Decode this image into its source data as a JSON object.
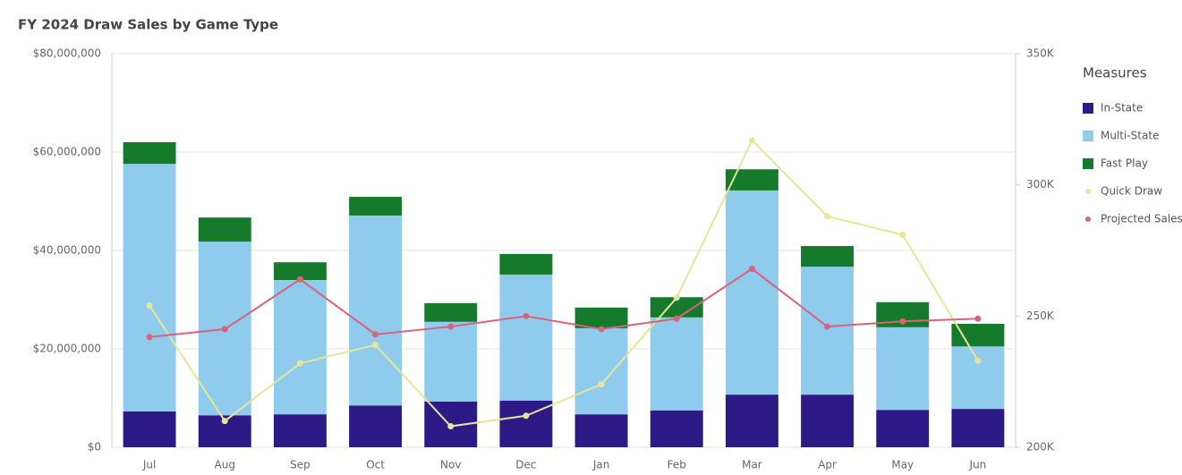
{
  "chart_data": {
    "type": "bar",
    "stacked": true,
    "title": "FY 2024 Draw Sales by Game Type",
    "legend_title": "Measures",
    "categories": [
      "Jul",
      "Aug",
      "Sep",
      "Oct",
      "Nov",
      "Dec",
      "Jan",
      "Feb",
      "Mar",
      "Apr",
      "May",
      "Jun"
    ],
    "series": [
      {
        "name": "In-State",
        "color": "#2e1a87",
        "values": [
          7300000,
          6500000,
          6700000,
          8500000,
          9300000,
          9500000,
          6700000,
          7500000,
          10700000,
          10700000,
          7600000,
          7800000
        ]
      },
      {
        "name": "Multi-State",
        "color": "#8ecbec",
        "values": [
          50300000,
          35300000,
          27300000,
          38600000,
          16200000,
          25600000,
          17500000,
          18900000,
          41500000,
          26000000,
          16800000,
          12700000
        ]
      },
      {
        "name": "Fast Play",
        "color": "#157a2c",
        "values": [
          4400000,
          4900000,
          3600000,
          3800000,
          3800000,
          4200000,
          4200000,
          4100000,
          4300000,
          4200000,
          5100000,
          4600000
        ]
      },
      {
        "name": "Quick Draw",
        "color": "#e6e59a",
        "type": "line",
        "axis": "y2",
        "values": [
          254000,
          210000,
          232000,
          239000,
          208000,
          212000,
          224000,
          257000,
          317000,
          288000,
          281000,
          233000
        ]
      },
      {
        "name": "Projected Sales",
        "color": "#d9627d",
        "type": "line",
        "axis": "y2",
        "values": [
          242000,
          245000,
          264000,
          243000,
          246000,
          250000,
          245000,
          249000,
          268000,
          246000,
          248000,
          249000
        ]
      }
    ],
    "ylim": [
      0,
      80000000
    ],
    "yticks": [
      {
        "value": 0,
        "label": "$0"
      },
      {
        "value": 20000000,
        "label": "$20,000,000"
      },
      {
        "value": 40000000,
        "label": "$40,000,000"
      },
      {
        "value": 60000000,
        "label": "$60,000,000"
      },
      {
        "value": 80000000,
        "label": "$80,000,000"
      }
    ],
    "y2lim": [
      200000,
      350000
    ],
    "y2ticks": [
      {
        "value": 200000,
        "label": "200K"
      },
      {
        "value": 250000,
        "label": "250K"
      },
      {
        "value": 300000,
        "label": "300K"
      },
      {
        "value": 350000,
        "label": "350K"
      }
    ],
    "grid": true,
    "legend": "right"
  }
}
